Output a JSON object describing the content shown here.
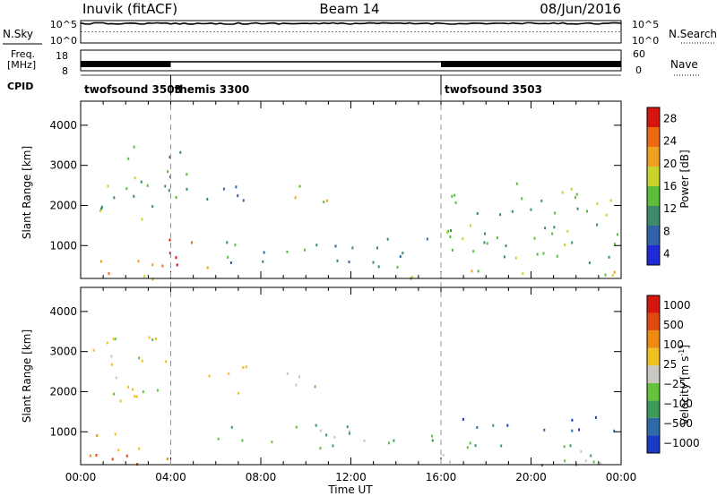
{
  "header": {
    "station": "Inuvik (fitACF)",
    "beam": "Beam 14",
    "date": "08/Jun/2016"
  },
  "chart_data": [
    {
      "type": "line",
      "panel": "noise",
      "left_label": "N.Sky",
      "right_label": "N.Search",
      "left_ticks": [
        "10^5",
        "10^0"
      ],
      "right_ticks": [
        "10^5",
        "10^0"
      ],
      "sky_level_fraction": 0.87,
      "xlim": [
        0,
        24
      ]
    },
    {
      "type": "line",
      "panel": "frequency",
      "left_label_line1": "Freq.",
      "left_label_line2": "[MHz]",
      "right_label": "Nave",
      "left_ticks": [
        "18",
        "8"
      ],
      "right_ticks": [
        "60",
        "0"
      ],
      "dense_segments": [
        [
          0,
          4.0
        ],
        [
          16.0,
          24
        ]
      ],
      "xlim": [
        0,
        24
      ]
    },
    {
      "type": "table",
      "panel": "cpid",
      "label": "CPID",
      "segments": [
        {
          "start": 0,
          "end": 4.0,
          "name": "twofsound 3503"
        },
        {
          "start": 4.0,
          "end": 16.0,
          "name": "themis 3300"
        },
        {
          "start": 16.0,
          "end": 24,
          "name": "twofsound 3503"
        }
      ]
    },
    {
      "type": "heatmap",
      "panel": "power",
      "ylabel": "Slant Range [km]",
      "yticks": [
        1000,
        2000,
        3000,
        4000
      ],
      "ylim": [
        180,
        4600
      ],
      "xlim": [
        0,
        24
      ],
      "colorbar_label": "Power [dB]",
      "colorbar_ticks": [
        "4",
        "8",
        "12",
        "16",
        "20",
        "24",
        "28"
      ],
      "colors": [
        "#1f2bd8",
        "#2f62a8",
        "#3f8a6a",
        "#5bbd3a",
        "#c9d42a",
        "#f0a020",
        "#ee6a10",
        "#d8140e"
      ],
      "scatter_regions": [
        {
          "x": [
            0,
            4
          ],
          "y": [
            180,
            700
          ],
          "level": 5
        },
        {
          "x": [
            0.5,
            3.5
          ],
          "y": [
            1600,
            2800
          ],
          "level": 3
        },
        {
          "x": [
            2,
            5
          ],
          "y": [
            2200,
            3500
          ],
          "level": 2
        },
        {
          "x": [
            3.8,
            6
          ],
          "y": [
            300,
            1200
          ],
          "level": 6
        },
        {
          "x": [
            5.5,
            7.5
          ],
          "y": [
            1900,
            2700
          ],
          "level": 2
        },
        {
          "x": [
            9,
            11
          ],
          "y": [
            2000,
            2600
          ],
          "level": 4
        },
        {
          "x": [
            6,
            16
          ],
          "y": [
            600,
            1200
          ],
          "level": 2
        },
        {
          "x": [
            11.5,
            15
          ],
          "y": [
            200,
            600
          ],
          "level": 3
        },
        {
          "x": [
            16,
            24
          ],
          "y": [
            600,
            2600
          ],
          "level": 3
        },
        {
          "x": [
            16,
            24
          ],
          "y": [
            180,
            400
          ],
          "level": 4
        }
      ]
    },
    {
      "type": "heatmap",
      "panel": "velocity",
      "ylabel": "Slant Range [km]",
      "yticks": [
        1000,
        2000,
        3000,
        4000
      ],
      "ylim": [
        180,
        4600
      ],
      "xlim": [
        0,
        24
      ],
      "xlabel": "Time UT",
      "xticks": [
        "00:00",
        "04:00",
        "08:00",
        "12:00",
        "16:00",
        "20:00",
        "00:00"
      ],
      "colorbar_label": "Velocity [m s",
      "colorbar_label_sup": "-1",
      "colorbar_label_end": "]",
      "colorbar_ticks": [
        "1000",
        "500",
        "100",
        "25",
        "−25",
        "−100",
        "−500",
        "−1000"
      ],
      "colors": [
        "#1a3ac8",
        "#2f6aa8",
        "#3d9a58",
        "#66c23a",
        "#c8c8c0",
        "#f0c020",
        "#ee8a10",
        "#e04a0e",
        "#d8140e"
      ],
      "scatter_regions": [
        {
          "x": [
            0,
            4
          ],
          "y": [
            180,
            1000
          ],
          "level": 6
        },
        {
          "x": [
            0.5,
            4
          ],
          "y": [
            1600,
            3500
          ],
          "level": 4
        },
        {
          "x": [
            5.5,
            7.5
          ],
          "y": [
            1900,
            2700
          ],
          "level": 4
        },
        {
          "x": [
            9,
            11
          ],
          "y": [
            2000,
            2600
          ],
          "level": 4
        },
        {
          "x": [
            6,
            16
          ],
          "y": [
            600,
            1200
          ],
          "level": 3
        },
        {
          "x": [
            16,
            24
          ],
          "y": [
            1000,
            1400
          ],
          "level": 1
        },
        {
          "x": [
            16,
            24
          ],
          "y": [
            180,
            800
          ],
          "level": 3
        }
      ]
    }
  ]
}
